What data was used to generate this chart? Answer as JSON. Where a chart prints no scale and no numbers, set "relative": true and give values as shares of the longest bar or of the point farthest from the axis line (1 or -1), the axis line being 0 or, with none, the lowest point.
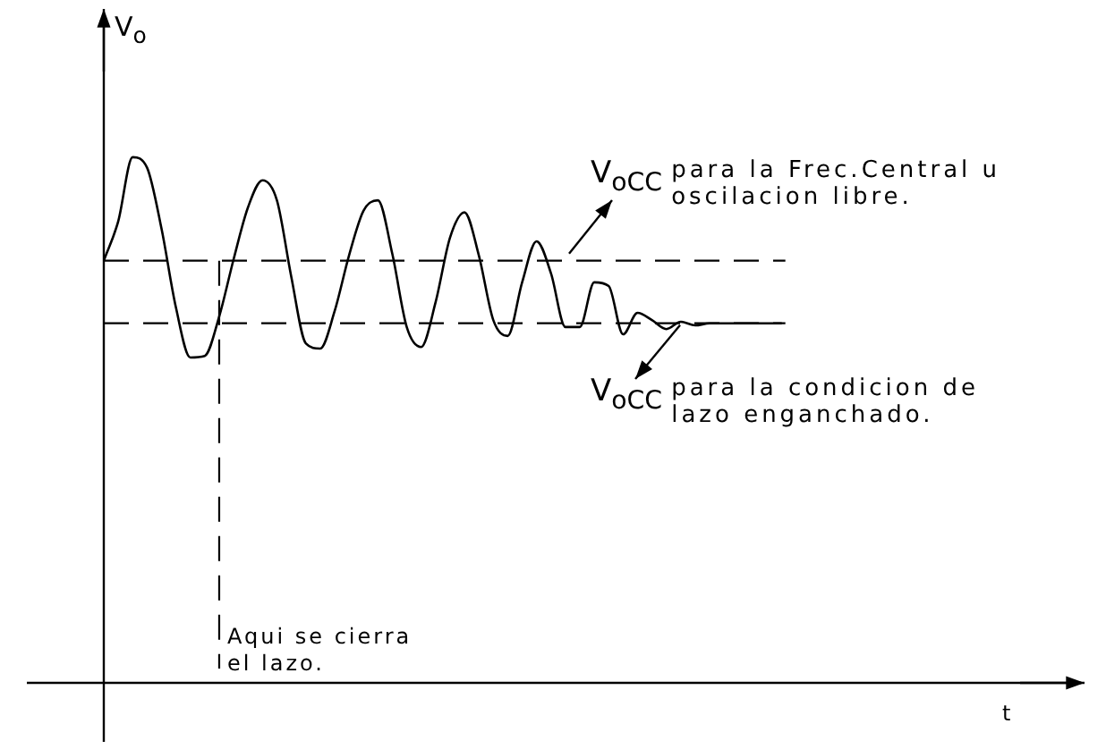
{
  "chart_data": {
    "type": "line",
    "relative": true,
    "xlabel": "t",
    "categories": [
      null,
      null,
      null,
      null,
      null,
      null,
      null,
      null,
      null,
      null,
      null,
      null,
      null,
      null,
      null,
      null,
      null,
      null,
      null,
      null,
      null,
      null,
      null,
      null,
      null,
      null,
      null,
      null,
      null,
      null,
      null,
      null,
      null,
      null,
      null,
      null,
      null,
      null,
      null,
      null,
      null,
      null,
      null,
      null,
      null,
      null,
      null,
      null,
      null,
      null,
      null,
      null,
      null,
      null,
      null,
      null,
      null,
      null,
      null,
      null,
      null,
      null,
      null,
      null,
      null,
      null,
      null
    ],
    "series": [
      {
        "color": "#000000",
        "values": [
          0.803,
          0.878,
          1,
          0.98,
          0.864,
          0.714,
          0.619,
          0.622,
          0.697,
          0.806,
          0.905,
          0.956,
          0.918,
          0.772,
          0.646,
          0.636,
          0.707,
          0.813,
          0.898,
          0.918,
          0.816,
          0.677,
          0.639,
          0.724,
          0.847,
          0.895,
          0.813,
          0.69,
          0.66,
          0.762,
          0.84,
          0.779,
          0.677,
          0.677,
          0.762,
          0.755,
          0.663,
          0.704,
          0.69,
          0.673,
          0.687,
          0.68,
          0.684,
          0.684,
          0.684,
          0.684,
          0.684,
          0.684,
          null,
          null,
          null,
          null,
          null,
          null,
          null,
          null,
          null,
          null,
          null,
          null,
          null,
          null,
          null,
          null,
          null,
          null,
          null
        ]
      }
    ],
    "marker": "none",
    "line_style": "solid",
    "legend": false,
    "tick_labels": false,
    "ref_lines": [
      {
        "axis": "y",
        "value": 0.803,
        "line_style": "dashed",
        "color": "#000000"
      },
      {
        "axis": "y",
        "value": 0.684,
        "line_style": "dashed",
        "color": "#000000"
      }
    ],
    "annotations": [
      "V$_{oCC}$ para la Frec.Central u oscilacion libre.",
      "V$_{oCC}$ para la condicion de lazo enganchado.",
      "Aqui se cierra el lazo.",
      "V$_{o}$"
    ]
  }
}
